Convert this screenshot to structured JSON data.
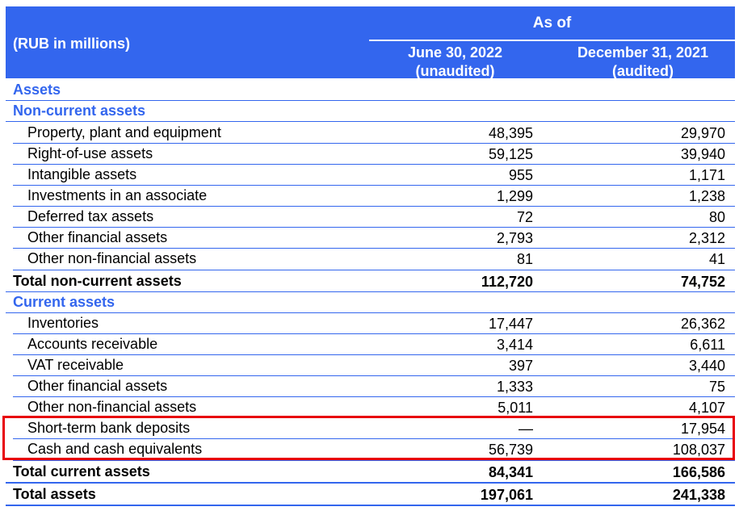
{
  "header": {
    "units": "(RUB in millions)",
    "as_of": "As of",
    "col1_line1": "June 30, 2022",
    "col1_line2": "(unaudited)",
    "col2_line1": "December 31, 2021",
    "col2_line2": "(audited)"
  },
  "rows": [
    {
      "type": "section",
      "label": "Assets",
      "v1": "",
      "v2": ""
    },
    {
      "type": "section",
      "label": "Non-current assets",
      "v1": "",
      "v2": ""
    },
    {
      "type": "item",
      "label": "Property, plant and equipment",
      "v1": "48,395",
      "v2": "29,970"
    },
    {
      "type": "item",
      "label": "Right-of-use assets",
      "v1": "59,125",
      "v2": "39,940"
    },
    {
      "type": "item",
      "label": "Intangible assets",
      "v1": "955",
      "v2": "1,171"
    },
    {
      "type": "item",
      "label": "Investments in an associate",
      "v1": "1,299",
      "v2": "1,238"
    },
    {
      "type": "item",
      "label": "Deferred tax assets",
      "v1": "72",
      "v2": "80"
    },
    {
      "type": "item",
      "label": "Other financial assets",
      "v1": "2,793",
      "v2": "2,312"
    },
    {
      "type": "item",
      "label": "Other non-financial assets",
      "v1": "81",
      "v2": "41"
    },
    {
      "type": "total",
      "label": "Total non-current assets",
      "v1": "112,720",
      "v2": "74,752"
    },
    {
      "type": "section",
      "label": "Current assets",
      "v1": "",
      "v2": ""
    },
    {
      "type": "item",
      "label": "Inventories",
      "v1": "17,447",
      "v2": "26,362"
    },
    {
      "type": "item",
      "label": "Accounts receivable",
      "v1": "3,414",
      "v2": "6,611"
    },
    {
      "type": "item",
      "label": "VAT receivable",
      "v1": "397",
      "v2": "3,440"
    },
    {
      "type": "item",
      "label": "Other financial assets",
      "v1": "1,333",
      "v2": "75"
    },
    {
      "type": "item",
      "label": "Other non-financial assets",
      "v1": "5,011",
      "v2": "4,107"
    },
    {
      "type": "item",
      "label": "Short-term bank deposits",
      "v1": "—",
      "v2": "17,954"
    },
    {
      "type": "item",
      "label": "Cash and cash equivalents",
      "v1": "56,739",
      "v2": "108,037"
    },
    {
      "type": "total",
      "label": "Total current assets",
      "v1": "84,341",
      "v2": "166,586"
    },
    {
      "type": "total",
      "label": "Total assets",
      "v1": "197,061",
      "v2": "241,338"
    }
  ],
  "colors": {
    "accent": "#3366ee",
    "highlight": "#e8000b"
  }
}
